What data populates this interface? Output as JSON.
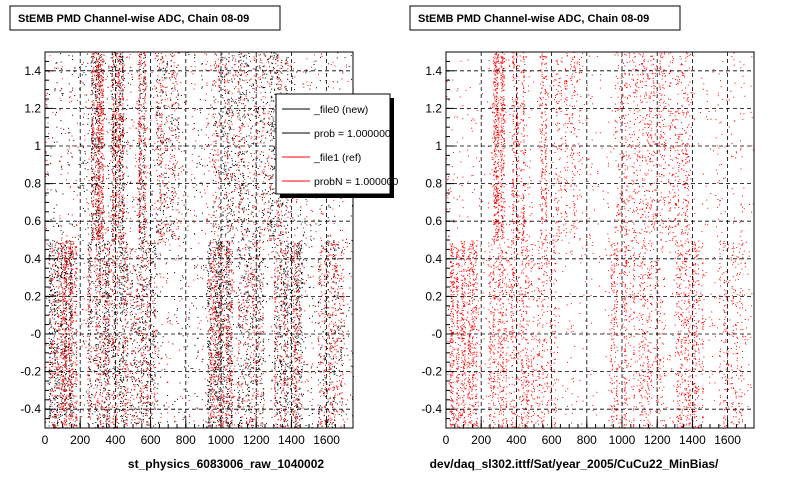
{
  "colors": {
    "new": "#000000",
    "ref": "#ff0000",
    "frame": "#000000",
    "background": "#ffffff"
  },
  "chart_data": [
    {
      "type": "scatter",
      "title": "StEMB PMD Channel-wise ADC, Chain 08-09",
      "xlabel": "st_physics_6083006_raw_1040002",
      "ylabel": "",
      "xlim": [
        0,
        1750
      ],
      "ylim": [
        -0.5,
        1.5
      ],
      "xticks": [
        "0",
        "200",
        "400",
        "600",
        "800",
        "1000",
        "1200",
        "1400",
        "1600"
      ],
      "yticks": [
        "-0.4",
        "-0.2",
        "-0",
        "0.2",
        "0.4",
        "0.6",
        "0.8",
        "1",
        "1.2",
        "1.4"
      ],
      "grid": true,
      "legend_placement": "top-right",
      "legend": [
        "_file0 (new)",
        "prob = 1.000000",
        "_file1 (ref)",
        "probN = 1.000000"
      ],
      "series": [
        {
          "name": "_file0 (new)",
          "color": "#000000",
          "bands": [
            {
              "x0": 0,
              "x1": 1750,
              "y0": 0.5,
              "y1": 1.5,
              "density": 0.07
            },
            {
              "x0": 0,
              "x1": 1750,
              "y0": -0.5,
              "y1": 0.5,
              "density": 0.05
            },
            {
              "x0": 260,
              "x1": 330,
              "y0": 0.5,
              "y1": 1.5,
              "density": 0.9
            },
            {
              "x0": 370,
              "x1": 450,
              "y0": 0.5,
              "y1": 1.5,
              "density": 0.95
            },
            {
              "x0": 530,
              "x1": 570,
              "y0": 0.5,
              "y1": 1.5,
              "density": 0.7
            },
            {
              "x0": 620,
              "x1": 760,
              "y0": 0.5,
              "y1": 1.5,
              "density": 0.25
            },
            {
              "x0": 950,
              "x1": 1250,
              "y0": 0.5,
              "y1": 1.5,
              "density": 0.2
            },
            {
              "x0": 1260,
              "x1": 1380,
              "y0": 0.5,
              "y1": 1.5,
              "density": 0.3
            },
            {
              "x0": 20,
              "x1": 180,
              "y0": -0.5,
              "y1": 0.5,
              "density": 0.75
            },
            {
              "x0": 240,
              "x1": 470,
              "y0": -0.5,
              "y1": 0.5,
              "density": 0.45
            },
            {
              "x0": 480,
              "x1": 640,
              "y0": -0.5,
              "y1": 0.5,
              "density": 0.3
            },
            {
              "x0": 920,
              "x1": 1070,
              "y0": -0.5,
              "y1": 0.5,
              "density": 0.55
            },
            {
              "x0": 1080,
              "x1": 1240,
              "y0": -0.5,
              "y1": 0.5,
              "density": 0.3
            },
            {
              "x0": 1300,
              "x1": 1460,
              "y0": -0.5,
              "y1": 0.5,
              "density": 0.4
            },
            {
              "x0": 1550,
              "x1": 1700,
              "y0": -0.5,
              "y1": 0.5,
              "density": 0.25
            }
          ]
        },
        {
          "name": "_file1 (ref)",
          "color": "#ff0000",
          "bands": [
            {
              "x0": 0,
              "x1": 1750,
              "y0": 0.5,
              "y1": 1.5,
              "density": 0.07
            },
            {
              "x0": 0,
              "x1": 1750,
              "y0": -0.5,
              "y1": 0.5,
              "density": 0.05
            },
            {
              "x0": 260,
              "x1": 330,
              "y0": 0.5,
              "y1": 1.5,
              "density": 0.9
            },
            {
              "x0": 370,
              "x1": 450,
              "y0": 0.5,
              "y1": 1.5,
              "density": 0.95
            },
            {
              "x0": 530,
              "x1": 570,
              "y0": 0.5,
              "y1": 1.5,
              "density": 0.7
            },
            {
              "x0": 620,
              "x1": 760,
              "y0": 0.5,
              "y1": 1.5,
              "density": 0.25
            },
            {
              "x0": 950,
              "x1": 1250,
              "y0": 0.5,
              "y1": 1.5,
              "density": 0.2
            },
            {
              "x0": 1260,
              "x1": 1380,
              "y0": 0.5,
              "y1": 1.5,
              "density": 0.3
            },
            {
              "x0": 20,
              "x1": 180,
              "y0": -0.5,
              "y1": 0.5,
              "density": 0.75
            },
            {
              "x0": 240,
              "x1": 470,
              "y0": -0.5,
              "y1": 0.5,
              "density": 0.45
            },
            {
              "x0": 480,
              "x1": 640,
              "y0": -0.5,
              "y1": 0.5,
              "density": 0.3
            },
            {
              "x0": 920,
              "x1": 1070,
              "y0": -0.5,
              "y1": 0.5,
              "density": 0.55
            },
            {
              "x0": 1080,
              "x1": 1240,
              "y0": -0.5,
              "y1": 0.5,
              "density": 0.3
            },
            {
              "x0": 1300,
              "x1": 1460,
              "y0": -0.5,
              "y1": 0.5,
              "density": 0.4
            },
            {
              "x0": 1550,
              "x1": 1700,
              "y0": -0.5,
              "y1": 0.5,
              "density": 0.25
            }
          ]
        }
      ]
    },
    {
      "type": "scatter",
      "title": "StEMB PMD Channel-wise ADC, Chain 08-09",
      "xlabel": "dev/daq_sl302.ittf/Sat/year_2005/CuCu22_MinBias/",
      "ylabel": "",
      "xlim": [
        0,
        1750
      ],
      "ylim": [
        -0.5,
        1.5
      ],
      "xticks": [
        "0",
        "200",
        "400",
        "600",
        "800",
        "1000",
        "1200",
        "1400",
        "1600"
      ],
      "yticks": [
        "-0.4",
        "-0.2",
        "-0",
        "0.2",
        "0.4",
        "0.6",
        "0.8",
        "1",
        "1.2",
        "1.4"
      ],
      "grid": true,
      "series": [
        {
          "name": "",
          "color": "#ff0000",
          "bands": [
            {
              "x0": 0,
              "x1": 1750,
              "y0": 0.5,
              "y1": 1.5,
              "density": 0.07
            },
            {
              "x0": 0,
              "x1": 1750,
              "y0": -0.5,
              "y1": 0.5,
              "density": 0.05
            },
            {
              "x0": 260,
              "x1": 330,
              "y0": 0.5,
              "y1": 1.5,
              "density": 0.9
            },
            {
              "x0": 370,
              "x1": 450,
              "y0": 0.5,
              "y1": 1.5,
              "density": 0.95
            },
            {
              "x0": 530,
              "x1": 570,
              "y0": 0.5,
              "y1": 1.5,
              "density": 0.7
            },
            {
              "x0": 620,
              "x1": 760,
              "y0": 0.5,
              "y1": 1.5,
              "density": 0.25
            },
            {
              "x0": 950,
              "x1": 1250,
              "y0": 0.5,
              "y1": 1.5,
              "density": 0.2
            },
            {
              "x0": 1260,
              "x1": 1380,
              "y0": 0.5,
              "y1": 1.5,
              "density": 0.3
            },
            {
              "x0": 20,
              "x1": 180,
              "y0": -0.5,
              "y1": 0.5,
              "density": 0.75
            },
            {
              "x0": 240,
              "x1": 470,
              "y0": -0.5,
              "y1": 0.5,
              "density": 0.45
            },
            {
              "x0": 480,
              "x1": 640,
              "y0": -0.5,
              "y1": 0.5,
              "density": 0.3
            },
            {
              "x0": 920,
              "x1": 1070,
              "y0": -0.5,
              "y1": 0.5,
              "density": 0.55
            },
            {
              "x0": 1080,
              "x1": 1240,
              "y0": -0.5,
              "y1": 0.5,
              "density": 0.3
            },
            {
              "x0": 1300,
              "x1": 1460,
              "y0": -0.5,
              "y1": 0.5,
              "density": 0.4
            },
            {
              "x0": 1550,
              "x1": 1700,
              "y0": -0.5,
              "y1": 0.5,
              "density": 0.25
            }
          ]
        }
      ]
    }
  ]
}
